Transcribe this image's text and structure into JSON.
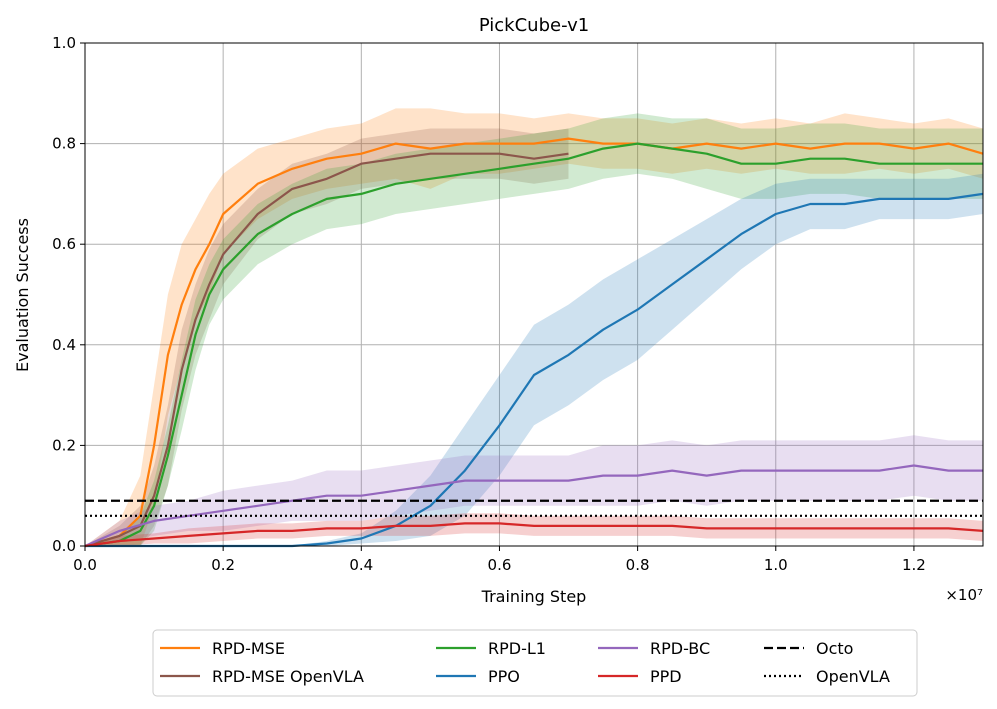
{
  "chart_data": {
    "type": "line",
    "title": "PickCube-v1",
    "xlabel": "Training Step",
    "ylabel": "Evaluation Success",
    "x_offset_label": "×10⁷",
    "xlim": [
      0,
      1.3
    ],
    "ylim": [
      0,
      1.0
    ],
    "x_ticks": [
      0.0,
      0.2,
      0.4,
      0.6,
      0.8,
      1.0,
      1.2
    ],
    "x_tick_labels": [
      "0.0",
      "0.2",
      "0.4",
      "0.6",
      "0.8",
      "1.0",
      "1.2"
    ],
    "y_ticks": [
      0.0,
      0.2,
      0.4,
      0.6,
      0.8,
      1.0
    ],
    "y_tick_labels": [
      "0.0",
      "0.2",
      "0.4",
      "0.6",
      "0.8",
      "1.0"
    ],
    "grid": true,
    "legend_position": "below plot",
    "series": [
      {
        "name": "RPD-MSE",
        "color": "#ff7f0e",
        "x": [
          0.0,
          0.05,
          0.08,
          0.1,
          0.12,
          0.14,
          0.16,
          0.18,
          0.2,
          0.25,
          0.3,
          0.35,
          0.4,
          0.45,
          0.5,
          0.55,
          0.6,
          0.65,
          0.7,
          0.75,
          0.8,
          0.85,
          0.9,
          0.95,
          1.0,
          1.05,
          1.1,
          1.15,
          1.2,
          1.25,
          1.3
        ],
        "y": [
          0.0,
          0.02,
          0.06,
          0.2,
          0.38,
          0.48,
          0.55,
          0.6,
          0.66,
          0.72,
          0.75,
          0.77,
          0.78,
          0.8,
          0.79,
          0.8,
          0.8,
          0.8,
          0.81,
          0.8,
          0.8,
          0.79,
          0.8,
          0.79,
          0.8,
          0.79,
          0.8,
          0.8,
          0.79,
          0.8,
          0.78
        ],
        "band": [
          0.0,
          0.03,
          0.08,
          0.12,
          0.12,
          0.12,
          0.1,
          0.1,
          0.08,
          0.07,
          0.06,
          0.06,
          0.06,
          0.07,
          0.08,
          0.06,
          0.06,
          0.05,
          0.05,
          0.05,
          0.05,
          0.05,
          0.05,
          0.05,
          0.05,
          0.05,
          0.06,
          0.05,
          0.05,
          0.05,
          0.05
        ]
      },
      {
        "name": "RPD-MSE OpenVLA",
        "color": "#8c564b",
        "x": [
          0.0,
          0.05,
          0.08,
          0.1,
          0.12,
          0.14,
          0.16,
          0.18,
          0.2,
          0.25,
          0.3,
          0.35,
          0.4,
          0.45,
          0.5,
          0.55,
          0.6,
          0.65,
          0.7
        ],
        "y": [
          0.0,
          0.02,
          0.04,
          0.1,
          0.2,
          0.35,
          0.45,
          0.52,
          0.58,
          0.66,
          0.71,
          0.73,
          0.76,
          0.77,
          0.78,
          0.78,
          0.78,
          0.77,
          0.78
        ],
        "band": [
          0.0,
          0.02,
          0.04,
          0.06,
          0.08,
          0.08,
          0.07,
          0.07,
          0.06,
          0.05,
          0.05,
          0.05,
          0.05,
          0.05,
          0.05,
          0.05,
          0.05,
          0.05,
          0.05
        ]
      },
      {
        "name": "RPD-L1",
        "color": "#2ca02c",
        "x": [
          0.0,
          0.05,
          0.08,
          0.1,
          0.12,
          0.14,
          0.16,
          0.18,
          0.2,
          0.25,
          0.3,
          0.35,
          0.4,
          0.45,
          0.5,
          0.55,
          0.6,
          0.65,
          0.7,
          0.75,
          0.8,
          0.85,
          0.9,
          0.95,
          1.0,
          1.05,
          1.1,
          1.15,
          1.2,
          1.25,
          1.3
        ],
        "y": [
          0.0,
          0.01,
          0.03,
          0.08,
          0.18,
          0.3,
          0.42,
          0.5,
          0.55,
          0.62,
          0.66,
          0.69,
          0.7,
          0.72,
          0.73,
          0.74,
          0.75,
          0.76,
          0.77,
          0.79,
          0.8,
          0.79,
          0.78,
          0.76,
          0.76,
          0.77,
          0.77,
          0.76,
          0.76,
          0.76,
          0.76
        ],
        "band": [
          0.0,
          0.01,
          0.03,
          0.05,
          0.06,
          0.07,
          0.07,
          0.06,
          0.06,
          0.06,
          0.06,
          0.06,
          0.06,
          0.06,
          0.06,
          0.06,
          0.06,
          0.06,
          0.06,
          0.06,
          0.06,
          0.06,
          0.07,
          0.07,
          0.07,
          0.07,
          0.07,
          0.07,
          0.07,
          0.07,
          0.07
        ]
      },
      {
        "name": "PPO",
        "color": "#1f77b4",
        "x": [
          0.0,
          0.2,
          0.3,
          0.35,
          0.4,
          0.45,
          0.5,
          0.55,
          0.6,
          0.65,
          0.7,
          0.75,
          0.8,
          0.85,
          0.9,
          0.95,
          1.0,
          1.05,
          1.1,
          1.15,
          1.2,
          1.25,
          1.3
        ],
        "y": [
          0.0,
          0.0,
          0.0,
          0.005,
          0.015,
          0.04,
          0.08,
          0.15,
          0.24,
          0.34,
          0.38,
          0.43,
          0.47,
          0.52,
          0.57,
          0.62,
          0.66,
          0.68,
          0.68,
          0.69,
          0.69,
          0.69,
          0.7
        ],
        "band": [
          0.0,
          0.0,
          0.0,
          0.005,
          0.01,
          0.03,
          0.06,
          0.09,
          0.1,
          0.1,
          0.1,
          0.1,
          0.1,
          0.09,
          0.08,
          0.07,
          0.06,
          0.05,
          0.05,
          0.04,
          0.04,
          0.04,
          0.04
        ]
      },
      {
        "name": "RPD-BC",
        "color": "#9467bd",
        "x": [
          0.0,
          0.05,
          0.1,
          0.15,
          0.2,
          0.25,
          0.3,
          0.35,
          0.4,
          0.45,
          0.5,
          0.55,
          0.6,
          0.65,
          0.7,
          0.75,
          0.8,
          0.85,
          0.9,
          0.95,
          1.0,
          1.05,
          1.1,
          1.15,
          1.2,
          1.25,
          1.3
        ],
        "y": [
          0.0,
          0.03,
          0.05,
          0.06,
          0.07,
          0.08,
          0.09,
          0.1,
          0.1,
          0.11,
          0.12,
          0.13,
          0.13,
          0.13,
          0.13,
          0.14,
          0.14,
          0.15,
          0.14,
          0.15,
          0.15,
          0.15,
          0.15,
          0.15,
          0.16,
          0.15,
          0.15
        ],
        "band": [
          0.0,
          0.02,
          0.03,
          0.03,
          0.04,
          0.04,
          0.04,
          0.05,
          0.05,
          0.05,
          0.05,
          0.05,
          0.05,
          0.05,
          0.05,
          0.06,
          0.06,
          0.06,
          0.06,
          0.06,
          0.06,
          0.06,
          0.06,
          0.06,
          0.06,
          0.06,
          0.06
        ]
      },
      {
        "name": "PPD",
        "color": "#d62728",
        "x": [
          0.0,
          0.05,
          0.1,
          0.15,
          0.2,
          0.25,
          0.3,
          0.35,
          0.4,
          0.45,
          0.5,
          0.55,
          0.6,
          0.65,
          0.7,
          0.75,
          0.8,
          0.85,
          0.9,
          0.95,
          1.0,
          1.05,
          1.1,
          1.15,
          1.2,
          1.25,
          1.3
        ],
        "y": [
          0.0,
          0.01,
          0.015,
          0.02,
          0.025,
          0.03,
          0.03,
          0.035,
          0.035,
          0.04,
          0.04,
          0.045,
          0.045,
          0.04,
          0.04,
          0.04,
          0.04,
          0.04,
          0.035,
          0.035,
          0.035,
          0.035,
          0.035,
          0.035,
          0.035,
          0.035,
          0.03
        ],
        "band": [
          0.0,
          0.01,
          0.01,
          0.015,
          0.015,
          0.015,
          0.015,
          0.015,
          0.015,
          0.02,
          0.02,
          0.02,
          0.02,
          0.02,
          0.02,
          0.02,
          0.02,
          0.02,
          0.02,
          0.02,
          0.02,
          0.02,
          0.02,
          0.02,
          0.02,
          0.02,
          0.02
        ]
      }
    ],
    "reference_lines": [
      {
        "name": "Octo",
        "y": 0.09,
        "style": "dashed",
        "color": "#000000"
      },
      {
        "name": "OpenVLA",
        "y": 0.06,
        "style": "dotted",
        "color": "#000000"
      }
    ],
    "legend": [
      {
        "label": "RPD-MSE",
        "color": "#ff7f0e",
        "style": "solid"
      },
      {
        "label": "RPD-MSE OpenVLA",
        "color": "#8c564b",
        "style": "solid"
      },
      {
        "label": "RPD-L1",
        "color": "#2ca02c",
        "style": "solid"
      },
      {
        "label": "PPO",
        "color": "#1f77b4",
        "style": "solid"
      },
      {
        "label": "RPD-BC",
        "color": "#9467bd",
        "style": "solid"
      },
      {
        "label": "PPD",
        "color": "#d62728",
        "style": "solid"
      },
      {
        "label": "Octo",
        "color": "#000000",
        "style": "dashed"
      },
      {
        "label": "OpenVLA",
        "color": "#000000",
        "style": "dotted"
      }
    ]
  }
}
